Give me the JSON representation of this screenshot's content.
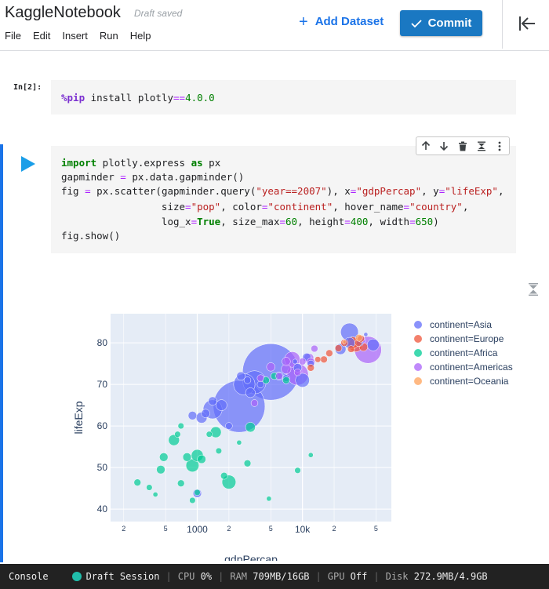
{
  "header": {
    "app_title": "KaggleNotebook",
    "save_status": "Draft saved",
    "menu": [
      "File",
      "Edit",
      "Insert",
      "Run",
      "Help"
    ],
    "add_dataset_label": "Add Dataset",
    "commit_label": "Commit",
    "accent_color": "#1a78c2"
  },
  "cells": [
    {
      "prompt": "In[2]:",
      "source": "%pip install plotly==4.0.0"
    },
    {
      "prompt": "",
      "source_lines": [
        "import plotly.express as px",
        "gapminder = px.data.gapminder()",
        "fig = px.scatter(gapminder.query(\"year==2007\"), x=\"gdpPercap\", y=\"lifeExp\",",
        "                 size=\"pop\", color=\"continent\", hover_name=\"country\",",
        "                 log_x=True, size_max=60, height=400, width=650)",
        "fig.show()"
      ]
    }
  ],
  "cell_toolbar": [
    "move-up-icon",
    "move-down-icon",
    "delete-icon",
    "collapse-icon",
    "more-icon"
  ],
  "chart_data": {
    "type": "scatter",
    "title": "",
    "xlabel": "gdpPercap",
    "ylabel": "lifeExp",
    "x_scale": "log",
    "xlim": [
      150,
      70000
    ],
    "ylim": [
      37,
      87
    ],
    "x_ticks": [
      {
        "v": 200,
        "label": "2"
      },
      {
        "v": 500,
        "label": "5"
      },
      {
        "v": 1000,
        "label": "1000"
      },
      {
        "v": 2000,
        "label": "2"
      },
      {
        "v": 5000,
        "label": "5"
      },
      {
        "v": 10000,
        "label": "10k"
      },
      {
        "v": 20000,
        "label": "2"
      },
      {
        "v": 50000,
        "label": "5"
      }
    ],
    "y_ticks": [
      40,
      50,
      60,
      70,
      80
    ],
    "legend_position": "right",
    "series": [
      {
        "name": "continent=Asia",
        "color": "#636efa",
        "points": [
          [
            5000,
            73,
            1.32
          ],
          [
            2500,
            64.7,
            1.11
          ],
          [
            3500,
            70.5,
            0.22
          ],
          [
            1400,
            64,
            0.15
          ],
          [
            2800,
            70,
            0.19
          ],
          [
            10000,
            71,
            0.08
          ],
          [
            28000,
            82.6,
            0.13
          ],
          [
            28000,
            80,
            0.05
          ],
          [
            40000,
            82,
            0.007
          ],
          [
            47000,
            79.5,
            0.06
          ],
          [
            23000,
            78.5,
            0.05
          ],
          [
            11000,
            76.5,
            0.03
          ],
          [
            9000,
            74,
            0.03
          ],
          [
            4000,
            70,
            0.02
          ],
          [
            1100,
            62,
            0.05
          ],
          [
            1000,
            43.8,
            0.03
          ],
          [
            1700,
            65,
            0.05
          ],
          [
            2600,
            72,
            0.03
          ],
          [
            1200,
            63,
            0.03
          ],
          [
            900,
            62.5,
            0.03
          ],
          [
            1400,
            66,
            0.03
          ],
          [
            3200,
            68,
            0.04
          ],
          [
            6000,
            72,
            0.03
          ],
          [
            12000,
            75,
            0.02
          ],
          [
            35000,
            80,
            0.02
          ],
          [
            2000,
            60,
            0.02
          ],
          [
            7000,
            71.5,
            0.02
          ],
          [
            3000,
            71,
            0.02
          ],
          [
            8500,
            75.5,
            0.01
          ]
        ]
      },
      {
        "name": "continent=Europe",
        "color": "#ef553b",
        "points": [
          [
            32000,
            79.5,
            0.08
          ],
          [
            30000,
            80,
            0.06
          ],
          [
            38000,
            79,
            0.03
          ],
          [
            34000,
            80,
            0.02
          ],
          [
            25000,
            80,
            0.02
          ],
          [
            16000,
            76,
            0.02
          ],
          [
            12000,
            74,
            0.02
          ],
          [
            18000,
            77.5,
            0.02
          ],
          [
            36000,
            81,
            0.02
          ],
          [
            29000,
            78.5,
            0.02
          ],
          [
            22000,
            78.7,
            0.02
          ],
          [
            14000,
            76,
            0.015
          ]
        ]
      },
      {
        "name": "continent=Africa",
        "color": "#00cc96",
        "points": [
          [
            2000,
            46.5,
            0.08
          ],
          [
            900,
            50.5,
            0.07
          ],
          [
            1000,
            52.9,
            0.06
          ],
          [
            600,
            56.6,
            0.05
          ],
          [
            1500,
            58.5,
            0.05
          ],
          [
            3200,
            59.7,
            0.04
          ],
          [
            800,
            52.5,
            0.03
          ],
          [
            1100,
            52,
            0.03
          ],
          [
            450,
            49.5,
            0.03
          ],
          [
            700,
            46.2,
            0.02
          ],
          [
            7000,
            71,
            0.02
          ],
          [
            5400,
            72,
            0.02
          ],
          [
            1800,
            48,
            0.02
          ],
          [
            3000,
            51,
            0.02
          ],
          [
            270,
            46.4,
            0.02
          ],
          [
            480,
            52.5,
            0.03
          ],
          [
            350,
            45.2,
            0.015
          ],
          [
            900,
            42.1,
            0.015
          ],
          [
            1300,
            58,
            0.015
          ],
          [
            1600,
            54,
            0.015
          ],
          [
            9000,
            49.3,
            0.015
          ],
          [
            12000,
            53,
            0.01
          ],
          [
            4500,
            71,
            0.02
          ],
          [
            4800,
            42.5,
            0.01
          ],
          [
            700,
            60,
            0.015
          ],
          [
            1000,
            44,
            0.015
          ],
          [
            400,
            43.5,
            0.01
          ],
          [
            650,
            58,
            0.015
          ],
          [
            2500,
            56,
            0.01
          ]
        ]
      },
      {
        "name": "continent=Americas",
        "color": "#ab63fa",
        "points": [
          [
            42000,
            78.3,
            0.3
          ],
          [
            9000,
            72.4,
            0.19
          ],
          [
            8000,
            76,
            0.1
          ],
          [
            11500,
            76.3,
            0.04
          ],
          [
            12000,
            75.3,
            0.03
          ],
          [
            36000,
            80.6,
            0.03
          ],
          [
            7000,
            73.7,
            0.04
          ],
          [
            5000,
            74.2,
            0.03
          ],
          [
            7000,
            75.5,
            0.03
          ],
          [
            13000,
            78.6,
            0.02
          ],
          [
            9000,
            72.9,
            0.02
          ],
          [
            10000,
            75.5,
            0.02
          ],
          [
            4000,
            71.5,
            0.02
          ],
          [
            6000,
            72,
            0.02
          ],
          [
            3500,
            65.5,
            0.02
          ]
        ]
      },
      {
        "name": "continent=Oceania",
        "color": "#ffa15a",
        "points": [
          [
            34500,
            81.2,
            0.02
          ],
          [
            25000,
            80.2,
            0.005
          ]
        ]
      }
    ]
  },
  "status_bar": {
    "console_label": "Console",
    "session_label": "Draft Session",
    "cpu_label": "CPU",
    "cpu_value": "0%",
    "ram_label": "RAM",
    "ram_value": "709MB/16GB",
    "gpu_label": "GPU",
    "gpu_value": "Off",
    "disk_label": "Disk",
    "disk_value": "272.9MB/4.9GB",
    "session_color": "#20beab"
  }
}
